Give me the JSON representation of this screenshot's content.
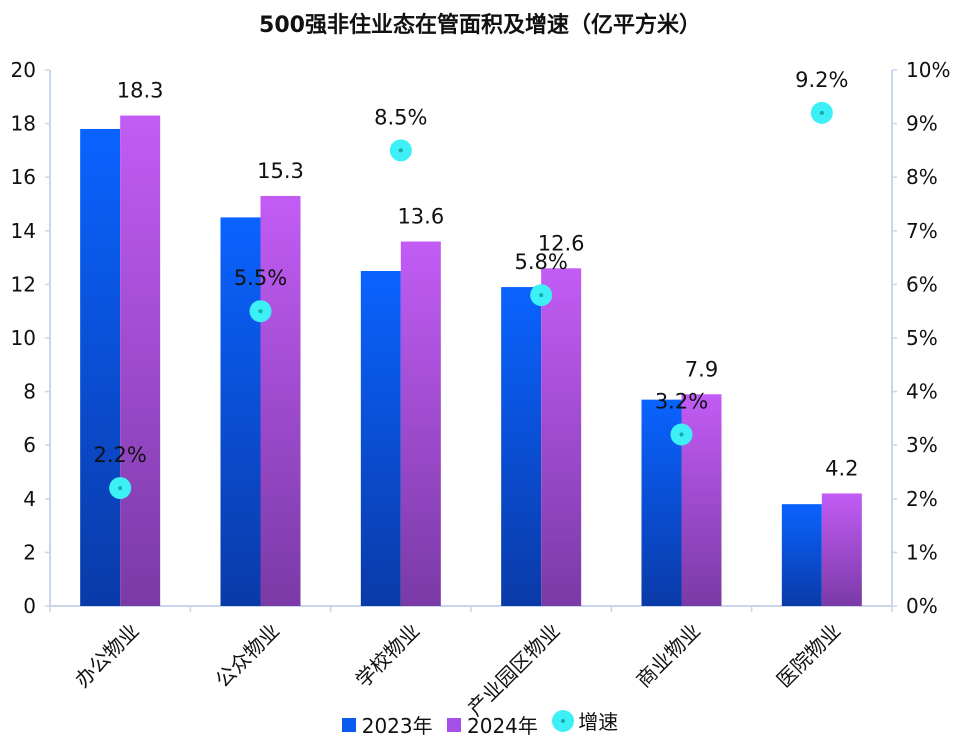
{
  "chart_data": {
    "type": "bar",
    "title": "500强非住业态在管面积及增速（亿平方米）",
    "categories": [
      "办公物业",
      "公众物业",
      "学校物业",
      "产业园区物业",
      "商业物业",
      "医院物业"
    ],
    "series": [
      {
        "name": "2023年",
        "values": [
          17.8,
          14.5,
          12.5,
          11.9,
          7.7,
          3.8
        ],
        "color": "#0a5cf0"
      },
      {
        "name": "2024年",
        "values": [
          18.3,
          15.3,
          13.6,
          12.6,
          7.9,
          4.2
        ],
        "color": "#a64ee8",
        "labels": [
          "18.3",
          "15.3",
          "13.6",
          "12.6",
          "7.9",
          "4.2"
        ]
      }
    ],
    "growth": {
      "name": "增速",
      "values": [
        2.2,
        5.5,
        8.5,
        5.8,
        3.2,
        9.2
      ],
      "labels": [
        "2.2%",
        "5.5%",
        "8.5%",
        "5.8%",
        "3.2%",
        "9.2%"
      ],
      "color": "#3df0f5"
    },
    "y_left": {
      "min": 0,
      "max": 20,
      "ticks": [
        "0",
        "2",
        "4",
        "6",
        "8",
        "10",
        "12",
        "14",
        "16",
        "18",
        "20"
      ]
    },
    "y_right": {
      "min": 0,
      "max": 10,
      "ticks": [
        "0%",
        "1%",
        "2%",
        "3%",
        "4%",
        "5%",
        "6%",
        "7%",
        "8%",
        "9%",
        "10%"
      ]
    },
    "legend": [
      "2023年",
      "2024年",
      "增速"
    ],
    "legend_position": "bottom",
    "grid": false
  }
}
